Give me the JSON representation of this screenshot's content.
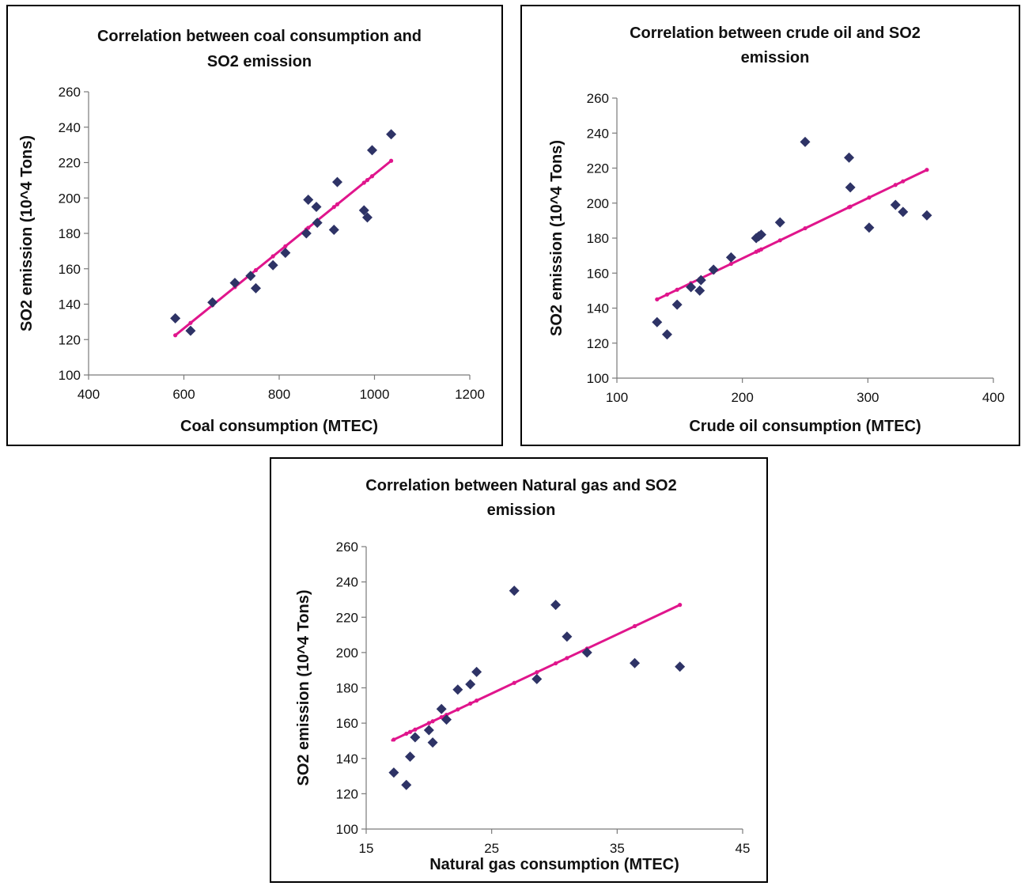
{
  "colors": {
    "points": "#2e3366",
    "trendline": "#e0158c"
  },
  "chart_data": [
    {
      "type": "scatter",
      "title_lines": [
        "Correlation between coal consumption and",
        "SO2 emission"
      ],
      "xlabel": "Coal consumption (MTEC)",
      "ylabel": "SO2 emission (10^4 Tons)",
      "xlim": [
        400,
        1200
      ],
      "ylim": [
        100,
        260
      ],
      "xticks": [
        400,
        600,
        800,
        1000,
        1200
      ],
      "yticks": [
        100,
        120,
        140,
        160,
        180,
        200,
        220,
        240,
        260
      ],
      "grid": false,
      "points": [
        [
          582,
          132
        ],
        [
          614,
          125
        ],
        [
          660,
          141
        ],
        [
          707,
          152
        ],
        [
          740,
          156
        ],
        [
          751,
          149
        ],
        [
          787,
          162
        ],
        [
          813,
          169
        ],
        [
          857,
          180
        ],
        [
          861,
          199
        ],
        [
          878,
          195
        ],
        [
          880,
          186
        ],
        [
          915,
          182
        ],
        [
          922,
          209
        ],
        [
          978,
          193
        ],
        [
          985,
          189
        ],
        [
          995,
          227
        ],
        [
          1035,
          236
        ]
      ],
      "trendline": {
        "type": "linear",
        "x": [
          580,
          1035
        ],
        "y": [
          122,
          221
        ]
      }
    },
    {
      "type": "scatter",
      "title_lines": [
        "Correlation between crude oil and SO2",
        "emission"
      ],
      "xlabel": "Crude oil consumption (MTEC)",
      "ylabel": "SO2 emission (10^4 Tons)",
      "xlim": [
        100,
        400
      ],
      "ylim": [
        100,
        260
      ],
      "xticks": [
        100,
        200,
        300,
        400
      ],
      "yticks": [
        100,
        120,
        140,
        160,
        180,
        200,
        220,
        240,
        260
      ],
      "grid": false,
      "points": [
        [
          132,
          132
        ],
        [
          140,
          125
        ],
        [
          148,
          142
        ],
        [
          159,
          152
        ],
        [
          166,
          150
        ],
        [
          167,
          156
        ],
        [
          177,
          162
        ],
        [
          191,
          169
        ],
        [
          211,
          180
        ],
        [
          213,
          181
        ],
        [
          215,
          182
        ],
        [
          230,
          189
        ],
        [
          250,
          235
        ],
        [
          285,
          226
        ],
        [
          286,
          209
        ],
        [
          301,
          186
        ],
        [
          322,
          199
        ],
        [
          328,
          195
        ],
        [
          347,
          193
        ]
      ],
      "trendline": {
        "type": "linear",
        "x": [
          132,
          347
        ],
        "y": [
          145,
          219
        ]
      }
    },
    {
      "type": "scatter",
      "title_lines": [
        "Correlation between Natural gas and SO2",
        "emission"
      ],
      "xlabel": "Natural gas consumption (MTEC)",
      "ylabel": "SO2 emission (10^4 Tons)",
      "xlim": [
        15,
        45
      ],
      "ylim": [
        100,
        260
      ],
      "xticks": [
        15,
        25,
        35,
        45
      ],
      "yticks": [
        100,
        120,
        140,
        160,
        180,
        200,
        220,
        240,
        260
      ],
      "grid": false,
      "points": [
        [
          17.2,
          132
        ],
        [
          18.2,
          125
        ],
        [
          18.5,
          141
        ],
        [
          18.9,
          152
        ],
        [
          20.0,
          156
        ],
        [
          20.3,
          149
        ],
        [
          21.0,
          168
        ],
        [
          21.4,
          162
        ],
        [
          22.3,
          179
        ],
        [
          23.3,
          182
        ],
        [
          23.8,
          189
        ],
        [
          26.8,
          235
        ],
        [
          28.6,
          185
        ],
        [
          30.1,
          227
        ],
        [
          31.0,
          209
        ],
        [
          32.6,
          200
        ],
        [
          36.4,
          194
        ],
        [
          40.0,
          192
        ]
      ],
      "trendline": {
        "type": "linear",
        "x": [
          17.0,
          40.0
        ],
        "y": [
          150,
          227
        ]
      }
    }
  ]
}
